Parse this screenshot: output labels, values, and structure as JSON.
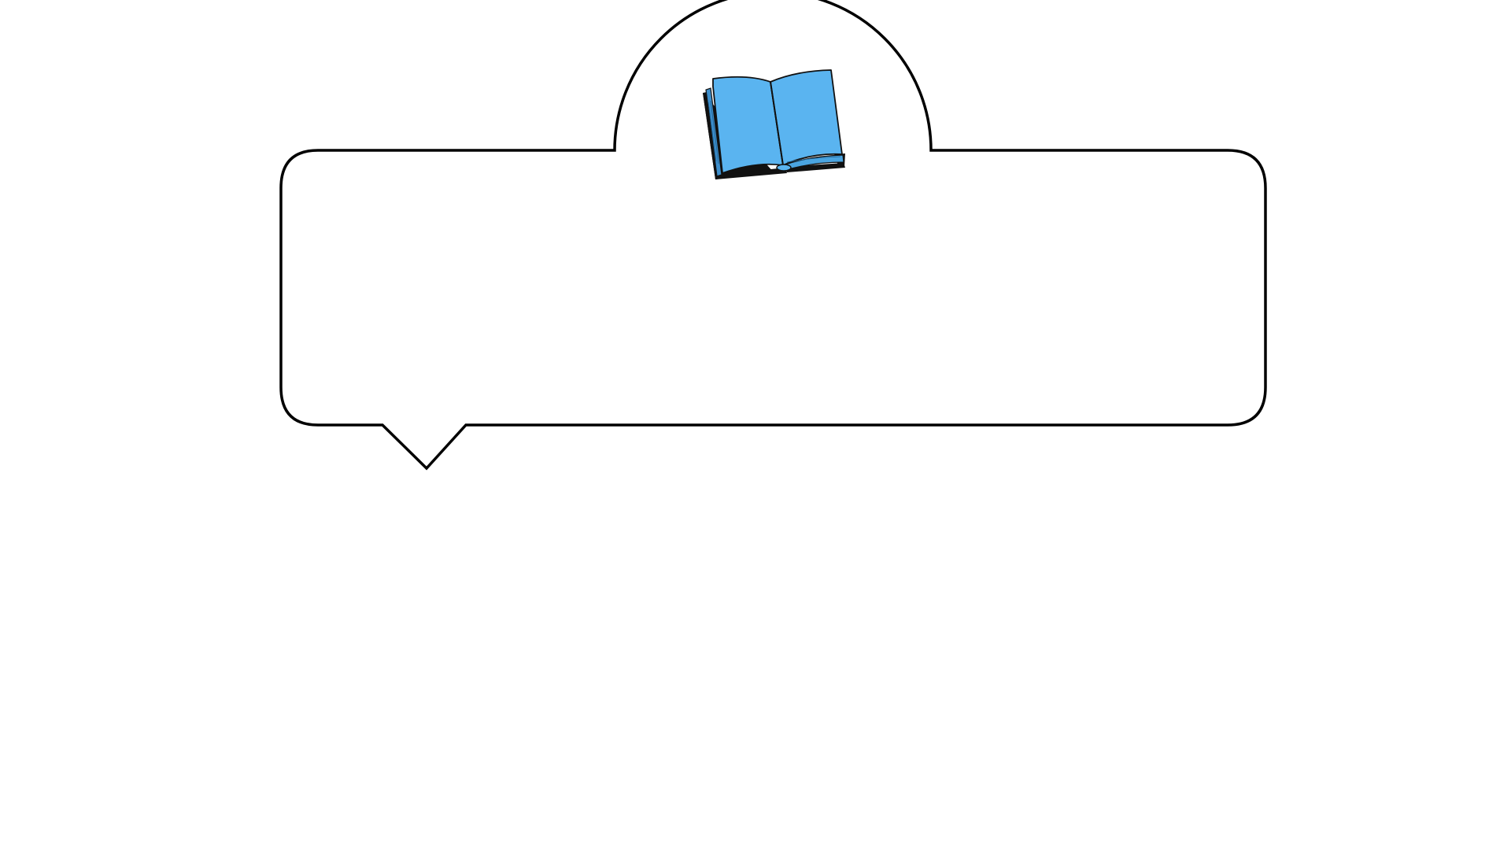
{
  "callout": {
    "text": "",
    "outline_color": "#000000",
    "fill_color": "#ffffff"
  },
  "book_icon": {
    "name": "open-book-icon",
    "page_color": "#5ab4f0",
    "cover_color": "#111111"
  }
}
